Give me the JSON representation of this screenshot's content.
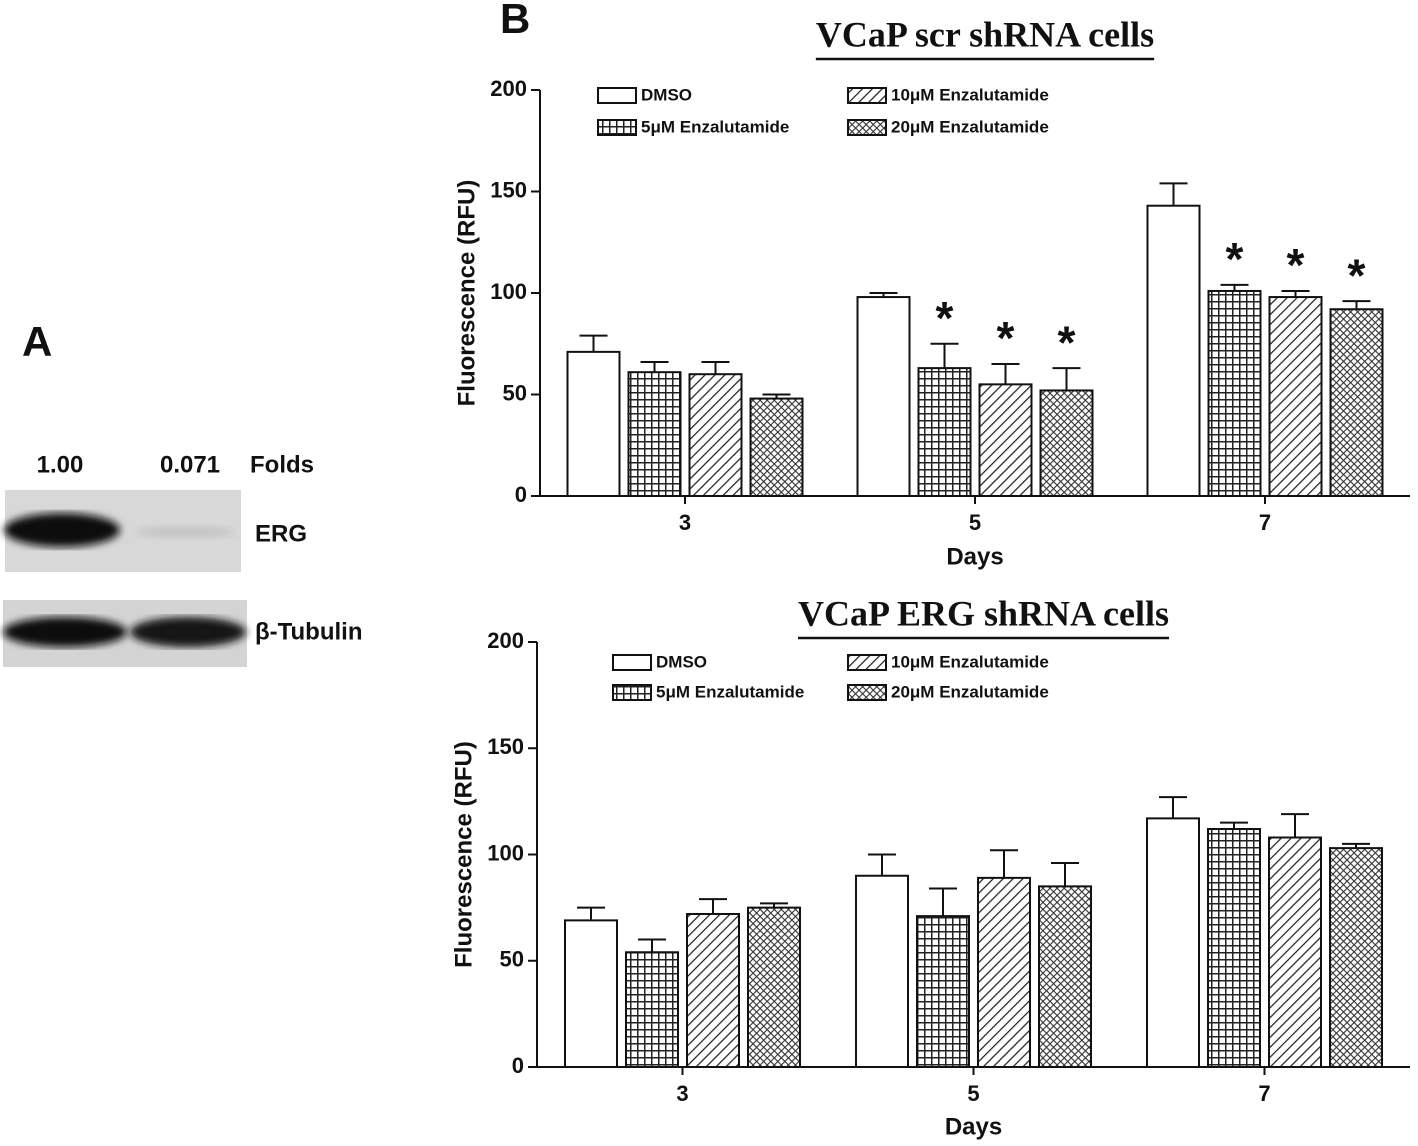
{
  "panel_a": {
    "label": "A",
    "lanes": [
      "1.00",
      "0.071"
    ],
    "lane_unit": "Folds",
    "bands": [
      "ERG",
      "β-Tubulin"
    ]
  },
  "panel_b_label": "B",
  "chart_data": [
    {
      "type": "bar",
      "title": "VCaP scr shRNA cells",
      "x_label": "Days",
      "y_label": "Fluorescence (RFU)",
      "categories": [
        "3",
        "5",
        "7"
      ],
      "ylim": [
        0,
        200
      ],
      "yticks": [
        0,
        50,
        100,
        150,
        200
      ],
      "legend": "upper left",
      "series": [
        {
          "name": "DMSO",
          "pattern": "none",
          "color": "#ffffff",
          "values": [
            71,
            98,
            143
          ],
          "errors": [
            8,
            2,
            11
          ]
        },
        {
          "name": "5μM Enzalutamide",
          "pattern": "grid",
          "color": "#ffffff",
          "values": [
            61,
            63,
            101
          ],
          "errors": [
            5,
            12,
            3
          ],
          "annotations": [
            null,
            "*",
            "*"
          ]
        },
        {
          "name": "10μM Enzalutamide",
          "pattern": "diagonal",
          "color": "#ffffff",
          "values": [
            60,
            55,
            98
          ],
          "errors": [
            6,
            10,
            3
          ],
          "annotations": [
            null,
            "*",
            "*"
          ]
        },
        {
          "name": "20μM Enzalutamide",
          "pattern": "crosshatch",
          "color": "#ffffff",
          "values": [
            48,
            52,
            92
          ],
          "errors": [
            2,
            11,
            4
          ],
          "annotations": [
            null,
            "*",
            "*"
          ]
        }
      ]
    },
    {
      "type": "bar",
      "title": "VCaP ERG shRNA cells",
      "x_label": "Days",
      "y_label": "Fluorescence (RFU)",
      "categories": [
        "3",
        "5",
        "7"
      ],
      "ylim": [
        0,
        200
      ],
      "yticks": [
        0,
        50,
        100,
        150,
        200
      ],
      "legend": "upper left",
      "series": [
        {
          "name": "DMSO",
          "pattern": "none",
          "color": "#ffffff",
          "values": [
            69,
            90,
            117
          ],
          "errors": [
            6,
            10,
            10
          ]
        },
        {
          "name": "5μM Enzalutamide",
          "pattern": "grid",
          "color": "#ffffff",
          "values": [
            54,
            71,
            112
          ],
          "errors": [
            6,
            13,
            3
          ]
        },
        {
          "name": "10μM Enzalutamide",
          "pattern": "diagonal",
          "color": "#ffffff",
          "values": [
            72,
            89,
            108
          ],
          "errors": [
            7,
            13,
            11
          ]
        },
        {
          "name": "20μM Enzalutamide",
          "pattern": "crosshatch",
          "color": "#ffffff",
          "values": [
            75,
            85,
            103
          ],
          "errors": [
            2,
            11,
            2
          ]
        }
      ]
    }
  ]
}
